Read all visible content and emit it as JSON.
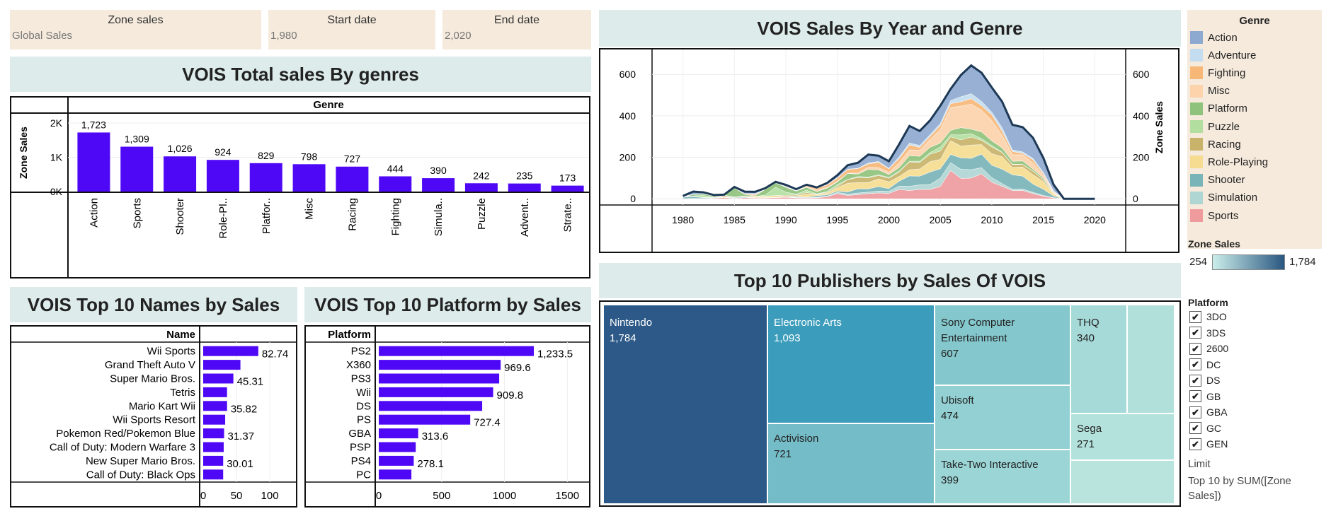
{
  "filters": [
    {
      "title": "Zone sales",
      "value": "Global Sales"
    },
    {
      "title": "Start date",
      "value": "1,980"
    },
    {
      "title": "End date",
      "value": "2,020"
    }
  ],
  "genre_chart": {
    "title": "VOIS Total sales By genres",
    "header": "Genre",
    "y_axis_label": "Zone Sales",
    "y_ticks": [
      "2K",
      "1K",
      "0K"
    ],
    "bar_color": "#4f08f5"
  },
  "names_chart": {
    "title": "VOIS Top 10 Names by Sales",
    "header": "Name",
    "x_ticks": [
      "0",
      "50",
      "100"
    ]
  },
  "platform_chart": {
    "title": "VOIS Top 10 Platform by Sales",
    "header": "Platform",
    "x_ticks": [
      "0",
      "500",
      "1000",
      "1500"
    ]
  },
  "area_chart": {
    "title": "VOIS  Sales By Year and Genre",
    "y_axis_label": "Zone Sales",
    "y_ticks": [
      "0",
      "200",
      "400",
      "600"
    ],
    "x_ticks": [
      "1980",
      "1985",
      "1990",
      "1995",
      "2000",
      "2005",
      "2010",
      "2015",
      "2020"
    ]
  },
  "treemap": {
    "title": "Top 10 Publishers by Sales Of VOIS",
    "cells": [
      {
        "name": "Nintendo",
        "value": "1,784"
      },
      {
        "name": "Electronic Arts",
        "value": "1,093"
      },
      {
        "name": "Activision",
        "value": "721"
      },
      {
        "name": "Sony Computer Entertainment",
        "value": "607"
      },
      {
        "name": "Ubisoft",
        "value": "474"
      },
      {
        "name": "Take-Two Interactive",
        "value": "399"
      },
      {
        "name": "THQ",
        "value": "340"
      },
      {
        "name": "Sega",
        "value": "271"
      }
    ]
  },
  "genre_legend": {
    "title": "Genre",
    "items": [
      {
        "label": "Action",
        "color": "#8ea9cf"
      },
      {
        "label": "Adventure",
        "color": "#c3dcef"
      },
      {
        "label": "Fighting",
        "color": "#f6b777"
      },
      {
        "label": "Misc",
        "color": "#fcd3ab"
      },
      {
        "label": "Platform",
        "color": "#8fc27c"
      },
      {
        "label": "Puzzle",
        "color": "#b2df9f"
      },
      {
        "label": "Racing",
        "color": "#c9b36a"
      },
      {
        "label": "Role-Playing",
        "color": "#f5dc90"
      },
      {
        "label": "Shooter",
        "color": "#79b4b9"
      },
      {
        "label": "Simulation",
        "color": "#b0d6d4"
      },
      {
        "label": "Sports",
        "color": "#ef9b9e"
      }
    ]
  },
  "zone_sales_legend": {
    "title": "Zone Sales",
    "min": "254",
    "max": "1,784",
    "color_low": "#cbeeea",
    "color_high": "#2a5781"
  },
  "platform_filter": {
    "title": "Platform",
    "items": [
      "3DO",
      "3DS",
      "2600",
      "DC",
      "DS",
      "GB",
      "GBA",
      "GC",
      "GEN"
    ],
    "check_mark": "✔"
  },
  "limit_note": {
    "label": "Limit",
    "text_line1": "Top 10 by SUM([Zone",
    "text_line2": "Sales])"
  },
  "chart_data": [
    {
      "type": "bar",
      "title": "VOIS Total sales By genres",
      "xlabel": "Genre",
      "ylabel": "Zone Sales",
      "categories": [
        "Action",
        "Sports",
        "Shooter",
        "Role-Pl..",
        "Platfor..",
        "Misc",
        "Racing",
        "Fighting",
        "Simula..",
        "Puzzle",
        "Advent..",
        "Strate.."
      ],
      "values": [
        1723,
        1309,
        1026,
        924,
        829,
        798,
        727,
        444,
        390,
        242,
        235,
        173
      ],
      "value_labels": [
        "1,723",
        "1,309",
        "1,026",
        "924",
        "829",
        "798",
        "727",
        "444",
        "390",
        "242",
        "235",
        "173"
      ],
      "ylim": [
        0,
        2000
      ]
    },
    {
      "type": "bar",
      "title": "VOIS Top 10 Names by Sales",
      "xlabel": "Name",
      "categories": [
        "Wii Sports",
        "Grand Theft Auto V",
        "Super Mario Bros.",
        "Tetris",
        "Mario Kart Wii",
        "Wii Sports Resort",
        "Pokemon Red/Pokemon Blue",
        "Call of Duty: Modern Warfare 3",
        "New Super Mario Bros.",
        "Call of Duty: Black Ops"
      ],
      "values": [
        82.74,
        55.9,
        45.31,
        35.8,
        35.82,
        33.0,
        31.37,
        30.8,
        30.01,
        30.0
      ],
      "value_labels": [
        "82.74",
        "",
        "45.31",
        "",
        "35.82",
        "",
        "31.37",
        "",
        "30.01",
        ""
      ],
      "xlim": [
        0,
        135
      ]
    },
    {
      "type": "bar",
      "title": "VOIS Top 10 Platform by Sales",
      "xlabel": "Platform",
      "categories": [
        "PS2",
        "X360",
        "PS3",
        "Wii",
        "DS",
        "PS",
        "GBA",
        "PSP",
        "PS4",
        "PC"
      ],
      "values": [
        1233.5,
        969.6,
        957.8,
        909.8,
        822.5,
        727.4,
        313.6,
        294.0,
        278.1,
        259.5
      ],
      "value_labels": [
        "1,233.5",
        "969.6",
        "",
        "909.8",
        "",
        "727.4",
        "313.6",
        "",
        "278.1",
        ""
      ],
      "xlim": [
        0,
        1650
      ]
    },
    {
      "type": "area",
      "title": "VOIS  Sales By Year and Genre",
      "ylabel": "Zone Sales",
      "x": [
        1980,
        1981,
        1982,
        1983,
        1984,
        1985,
        1986,
        1987,
        1988,
        1989,
        1990,
        1991,
        1992,
        1993,
        1994,
        1995,
        1996,
        1997,
        1998,
        1999,
        2000,
        2001,
        2002,
        2003,
        2004,
        2005,
        2006,
        2007,
        2008,
        2009,
        2010,
        2011,
        2012,
        2013,
        2014,
        2015,
        2016,
        2017,
        2018,
        2019,
        2020
      ],
      "ylim": [
        -30,
        720
      ],
      "series": [
        {
          "name": "Sports",
          "values": [
            0.5,
            0.8,
            1.1,
            3.2,
            6.2,
            1.9,
            5.6,
            3.4,
            3.6,
            5.7,
            7.0,
            4.3,
            3.9,
            4.6,
            10,
            25,
            16,
            20,
            25,
            28,
            26,
            45,
            40,
            45,
            45,
            60,
            136,
            98,
            100,
            120,
            80,
            60,
            40,
            40,
            25,
            13,
            4,
            0,
            0,
            0,
            0
          ]
        },
        {
          "name": "Simulation",
          "values": [
            0,
            0.5,
            0,
            0,
            1,
            0,
            0,
            1,
            0.5,
            0,
            1,
            2,
            2,
            2,
            3,
            6,
            6,
            8,
            7,
            9,
            10,
            16,
            20,
            22,
            24,
            40,
            38,
            44,
            40,
            30,
            22,
            13,
            6,
            7,
            6,
            3,
            1,
            0,
            0,
            0,
            0
          ]
        },
        {
          "name": "Shooter",
          "values": [
            7,
            10,
            4,
            3,
            1,
            4,
            3,
            1,
            1,
            1,
            1,
            4,
            2,
            8,
            6,
            6,
            11,
            20,
            16,
            22,
            13,
            24,
            50,
            42,
            60,
            45,
            40,
            55,
            55,
            65,
            60,
            70,
            70,
            62,
            40,
            30,
            8,
            0,
            0,
            0,
            0
          ]
        },
        {
          "name": "Role-Playing",
          "values": [
            0,
            0,
            0,
            0,
            0,
            0,
            3,
            5,
            6,
            9,
            2,
            4,
            14,
            6,
            8,
            17,
            42,
            30,
            30,
            37,
            32,
            22,
            30,
            35,
            50,
            45,
            66,
            57,
            64,
            46,
            55,
            60,
            35,
            44,
            45,
            37,
            10,
            0,
            0,
            0,
            0
          ]
        },
        {
          "name": "Racing",
          "values": [
            0,
            0.5,
            1,
            0,
            6,
            0,
            1,
            0,
            2,
            0,
            6,
            4,
            8,
            2,
            4,
            6,
            17,
            25,
            23,
            16,
            18,
            22,
            38,
            31,
            36,
            40,
            19,
            30,
            39,
            21,
            33,
            20,
            14,
            12,
            17,
            9,
            2,
            0,
            0,
            0,
            0
          ]
        },
        {
          "name": "Puzzle",
          "values": [
            1,
            2,
            10,
            1,
            3,
            3,
            0,
            1,
            5,
            40,
            15,
            4,
            12,
            1,
            4,
            9,
            1,
            4,
            4,
            4,
            4,
            5,
            3,
            6,
            8,
            20,
            10,
            24,
            16,
            8,
            7,
            2,
            2,
            1,
            1,
            1,
            0,
            0,
            0,
            0,
            0
          ]
        },
        {
          "name": "Platform",
          "values": [
            0,
            7,
            7,
            6,
            0.7,
            43,
            9,
            2,
            28,
            21,
            23,
            15,
            13,
            11,
            16,
            12,
            29,
            12,
            37,
            23,
            14,
            17,
            27,
            24,
            25,
            19,
            21,
            35,
            22,
            32,
            22,
            20,
            14,
            16,
            9,
            7,
            3,
            0,
            0,
            0,
            0
          ]
        },
        {
          "name": "Misc",
          "values": [
            3,
            0,
            1,
            2,
            1,
            0,
            0,
            0,
            0,
            1,
            4,
            0,
            4,
            8,
            4,
            4,
            1,
            5,
            10,
            11,
            11,
            23,
            28,
            29,
            38,
            66,
            109,
            104,
            120,
            105,
            98,
            60,
            31,
            30,
            29,
            12,
            3,
            0,
            0,
            0,
            0
          ]
        },
        {
          "name": "Fighting",
          "values": [
            1,
            0,
            0,
            0,
            0,
            1,
            3,
            6,
            0,
            0,
            0,
            1,
            4,
            8,
            11,
            15,
            18,
            22,
            16,
            26,
            16,
            20,
            24,
            14,
            15,
            19,
            20,
            21,
            27,
            22,
            28,
            21,
            16,
            7,
            16,
            8,
            4,
            0,
            0,
            0,
            0
          ]
        },
        {
          "name": "Adventure",
          "values": [
            0,
            0,
            0,
            0,
            0,
            0,
            0,
            5,
            1,
            0,
            0,
            3,
            1,
            1,
            2,
            2,
            2,
            1,
            5,
            4,
            3,
            9,
            9,
            9,
            9,
            9,
            15,
            24,
            24,
            21,
            13,
            17,
            8,
            7,
            7,
            7,
            3,
            0,
            0,
            0,
            0
          ]
        },
        {
          "name": "Action",
          "values": [
            1,
            14,
            7,
            3,
            1,
            4,
            10,
            9,
            4,
            4,
            8,
            5,
            4,
            3,
            8,
            12,
            19,
            27,
            40,
            28,
            34,
            60,
            82,
            70,
            68,
            86,
            56,
            105,
            136,
            138,
            119,
            125,
            121,
            119,
            99,
            70,
            30,
            0,
            0,
            0,
            0
          ]
        }
      ]
    },
    {
      "type": "treemap",
      "title": "Top 10 Publishers by Sales Of VOIS",
      "categories": [
        "Nintendo",
        "Electronic Arts",
        "Activision",
        "Sony Computer Entertainment",
        "Ubisoft",
        "Take-Two Interactive",
        "THQ",
        "Sega"
      ],
      "values": [
        1784,
        1093,
        721,
        607,
        474,
        399,
        340,
        271
      ]
    }
  ]
}
